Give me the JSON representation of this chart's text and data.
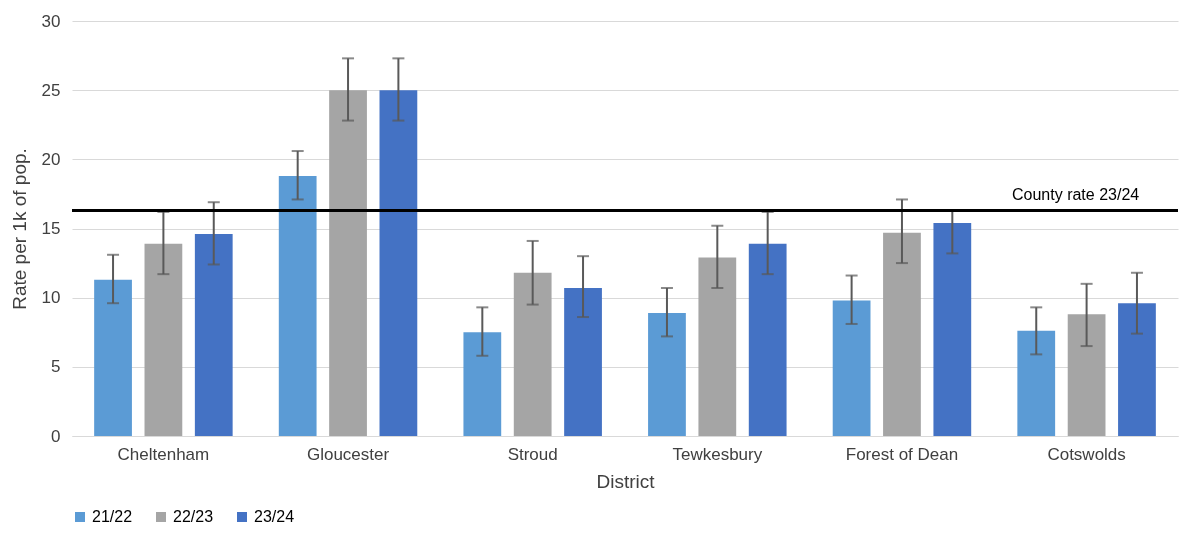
{
  "chart_data": {
    "type": "bar",
    "xlabel": "District",
    "ylabel": "Rate per 1k of pop.",
    "categories": [
      "Cheltenham",
      "Gloucester",
      "Stroud",
      "Tewkesbury",
      "Forest of Dean",
      "Cotswolds"
    ],
    "series": [
      {
        "name": "21/22",
        "color": "#5b9bd5",
        "values": [
          11.3,
          18.8,
          7.5,
          8.9,
          9.8,
          7.6
        ],
        "errors": [
          [
            9.6,
            13.1
          ],
          [
            17.1,
            20.6
          ],
          [
            5.8,
            9.3
          ],
          [
            7.2,
            10.7
          ],
          [
            8.1,
            11.6
          ],
          [
            5.9,
            9.3
          ]
        ]
      },
      {
        "name": "22/23",
        "color": "#a5a5a5",
        "values": [
          13.9,
          25.0,
          11.8,
          12.9,
          14.7,
          8.8
        ],
        "errors": [
          [
            11.7,
            16.2
          ],
          [
            22.8,
            27.3
          ],
          [
            9.5,
            14.1
          ],
          [
            10.7,
            15.2
          ],
          [
            12.5,
            17.1
          ],
          [
            6.5,
            11.0
          ]
        ]
      },
      {
        "name": "23/24",
        "color": "#4472c4",
        "values": [
          14.6,
          25.0,
          10.7,
          13.9,
          15.4,
          9.6
        ],
        "errors": [
          [
            12.4,
            16.9
          ],
          [
            22.8,
            27.3
          ],
          [
            8.6,
            13.0
          ],
          [
            11.7,
            16.2
          ],
          [
            13.2,
            16.3
          ],
          [
            7.4,
            11.8
          ]
        ]
      }
    ],
    "ylim": [
      0,
      30
    ],
    "yticks": [
      0,
      5,
      10,
      15,
      20,
      25,
      30
    ],
    "grid": "y",
    "legend": "bottom",
    "ref_lines": [
      {
        "axis": "y",
        "value": 16.3,
        "label": "County rate 23/24",
        "color": "#000000"
      }
    ]
  }
}
